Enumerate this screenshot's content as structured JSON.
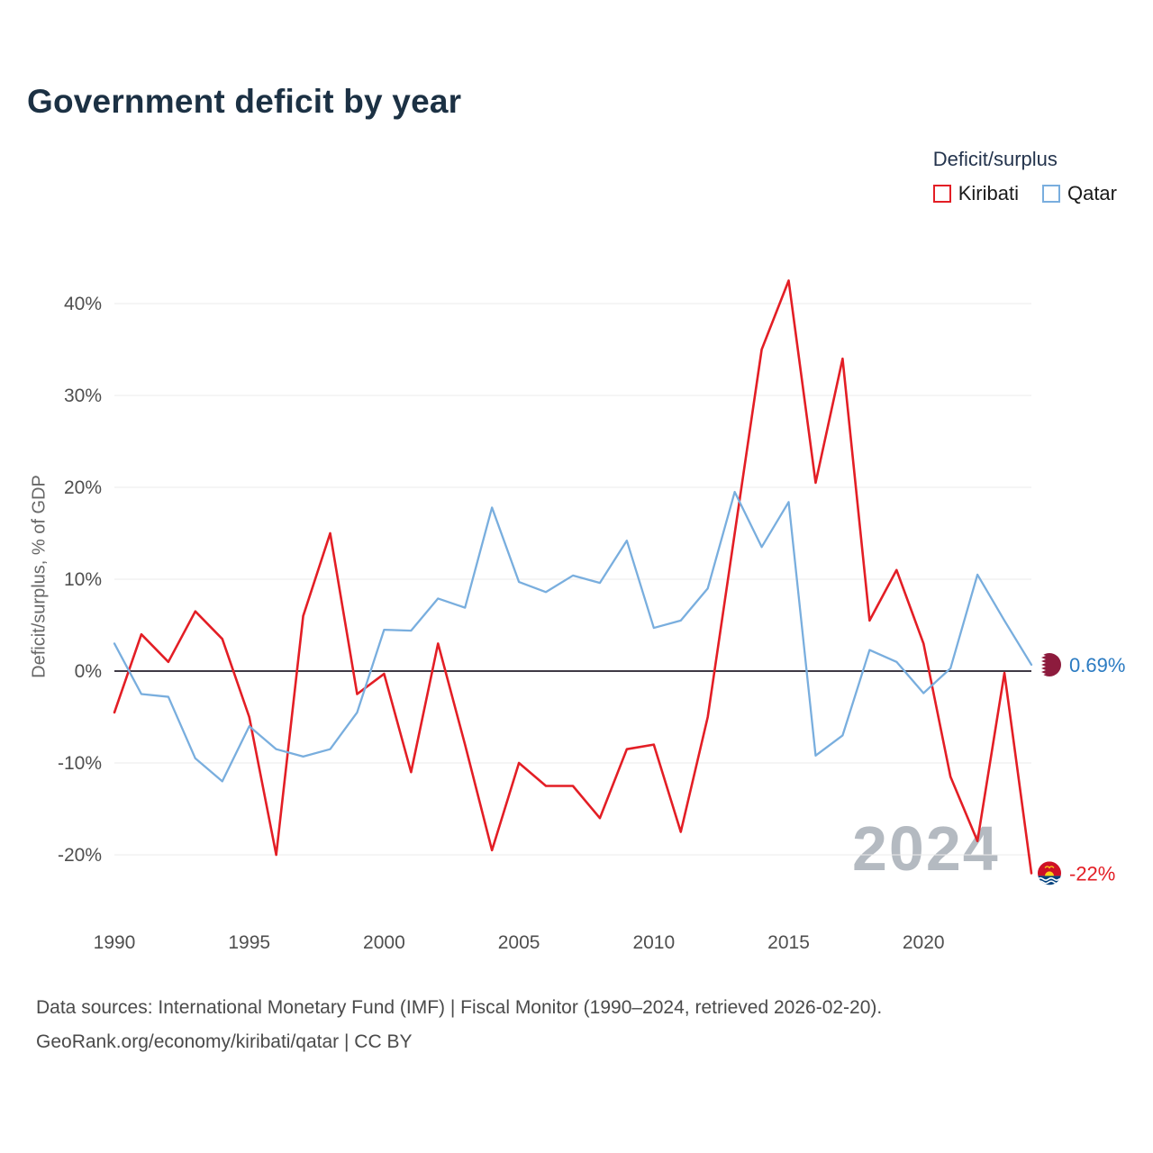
{
  "title": "Government deficit by year",
  "watermark": "2024",
  "legend": {
    "title": "Deficit/surplus",
    "items": [
      {
        "label": "Kiribati",
        "color": "#e31e25"
      },
      {
        "label": "Qatar",
        "color": "#79aede"
      }
    ]
  },
  "end_labels": {
    "kiribati": {
      "text": "-22%",
      "color": "#e31e25"
    },
    "qatar": {
      "text": "0.69%",
      "color": "#2b7bc2"
    }
  },
  "flags": {
    "qatar": {
      "maroon": "#8d1b3d",
      "white": "#ffffff"
    },
    "kiribati": {
      "red": "#CE1126",
      "blue": "#00417e",
      "gold": "#FCD116",
      "white": "#ffffff"
    }
  },
  "footer": {
    "line1": "Data sources: International Monetary Fund (IMF) | Fiscal Monitor (1990–2024, retrieved 2026-02-20).",
    "line2": "GeoRank.org/economy/kiribati/qatar | CC BY"
  },
  "chart_data": {
    "type": "line",
    "title": "Government deficit by year",
    "ylabel": "Deficit/surplus, % of GDP",
    "xlabel": "",
    "x": [
      1990,
      1991,
      1992,
      1993,
      1994,
      1995,
      1996,
      1997,
      1998,
      1999,
      2000,
      2001,
      2002,
      2003,
      2004,
      2005,
      2006,
      2007,
      2008,
      2009,
      2010,
      2011,
      2012,
      2013,
      2014,
      2015,
      2016,
      2017,
      2018,
      2019,
      2020,
      2021,
      2022,
      2023,
      2024
    ],
    "series": [
      {
        "name": "Kiribati",
        "color": "#e31e25",
        "values": [
          -4.5,
          4,
          1,
          6.5,
          3.5,
          -5,
          -20,
          6,
          15,
          -2.5,
          -0.3,
          -11,
          3,
          -8,
          -19.5,
          -10,
          -12.5,
          -12.5,
          -16,
          -8.5,
          -8,
          -17.5,
          -5,
          15,
          35,
          42.5,
          20.5,
          34,
          5.5,
          11,
          3,
          -11.5,
          -18.5,
          -0.2,
          -22
        ]
      },
      {
        "name": "Qatar",
        "color": "#79aede",
        "values": [
          3,
          -2.5,
          -2.8,
          -9.5,
          -12,
          -6,
          -8.5,
          -9.3,
          -8.5,
          -4.5,
          4.5,
          4.4,
          7.9,
          6.9,
          17.8,
          9.7,
          8.6,
          10.4,
          9.6,
          14.2,
          4.7,
          5.5,
          9,
          19.5,
          13.5,
          18.4,
          -9.2,
          -7,
          2.3,
          1,
          -2.4,
          0.3,
          10.5,
          5.5,
          0.69
        ]
      }
    ],
    "yticks": [
      -20,
      -10,
      0,
      10,
      20,
      30,
      40
    ],
    "xticks": [
      1990,
      1995,
      2000,
      2005,
      2010,
      2015,
      2020
    ],
    "ylim": [
      -25,
      45
    ],
    "x_range": [
      1990,
      2024
    ],
    "grid": "horizontal",
    "zero_line": true,
    "legend_position": "top-right"
  }
}
